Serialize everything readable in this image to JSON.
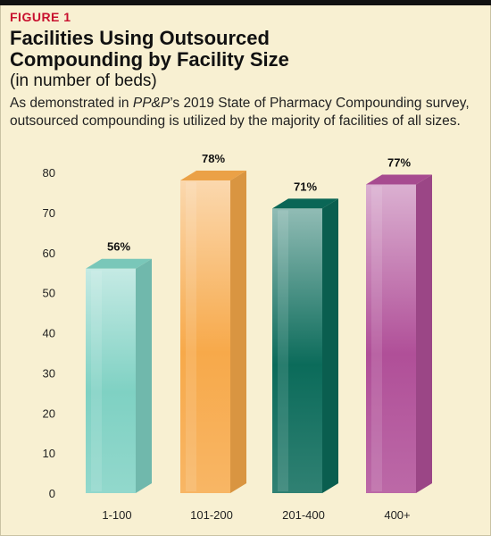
{
  "figure_label": "FIGURE 1",
  "title_line1": "Facilities Using Outsourced",
  "title_line2": "Compounding by Facility Size",
  "title_paren": "(in number of beds)",
  "description": {
    "part1": "As demonstrated in ",
    "italic": "PP&P",
    "part2": "’s 2019 State of Pharmacy Compounding survey, outsourced compounding is utilized by the majority of facilities of all sizes."
  },
  "colors": {
    "bar1": "#7fd1c3",
    "bar2": "#f7a94a",
    "bar3": "#0b6b5a",
    "bar4": "#b04f98",
    "background": "#f8f0d2"
  },
  "chart_data": {
    "type": "bar",
    "categories": [
      "1-100",
      "101-200",
      "201-400",
      "400+"
    ],
    "values": [
      56,
      78,
      71,
      77
    ],
    "value_labels": [
      "56%",
      "78%",
      "71%",
      "77%"
    ],
    "yticks": [
      0,
      10,
      20,
      30,
      40,
      50,
      60,
      70,
      80
    ],
    "ylim": [
      0,
      80
    ],
    "xlabel": "",
    "ylabel": "",
    "grid": false,
    "legend": "none"
  }
}
